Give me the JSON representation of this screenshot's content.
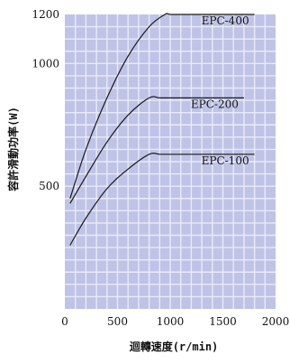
{
  "chart_data": {
    "type": "line",
    "title": "",
    "xlabel": "迴轉速度(r/min)",
    "ylabel": "容許滑動功率(W)",
    "xlim": [
      0,
      2000
    ],
    "ylim": [
      0,
      1200
    ],
    "x_ticks": [
      "0",
      "500",
      "1000",
      "1500",
      "2000"
    ],
    "y_ticks": [
      {
        "value": 500,
        "label": "500"
      },
      {
        "value": 1000,
        "label": "1000"
      },
      {
        "value": 1200,
        "label": "1200"
      }
    ],
    "grid": true,
    "colors": {
      "plot_background": "#bfc3e6",
      "grid": "#e9ebf8",
      "line": "#1a1a1a"
    },
    "series": [
      {
        "name": "EPC-400",
        "label": "EPC-400",
        "x": [
          50,
          200,
          400,
          600,
          800,
          950,
          1000,
          1100,
          1300,
          1500,
          1800
        ],
        "y": [
          450,
          650,
          860,
          1030,
          1150,
          1200,
          1200,
          1200,
          1200,
          1200,
          1200
        ]
      },
      {
        "name": "EPC-200",
        "label": "EPC-200",
        "x": [
          50,
          200,
          400,
          600,
          800,
          900,
          1000,
          1200,
          1400,
          1700
        ],
        "y": [
          430,
          540,
          680,
          790,
          860,
          860,
          860,
          860,
          860,
          860
        ]
      },
      {
        "name": "EPC-100",
        "label": "EPC-100",
        "x": [
          50,
          200,
          400,
          600,
          800,
          900,
          1000,
          1200,
          1500,
          1800
        ],
        "y": [
          260,
          370,
          490,
          570,
          630,
          630,
          630,
          630,
          630,
          630
        ]
      }
    ]
  }
}
